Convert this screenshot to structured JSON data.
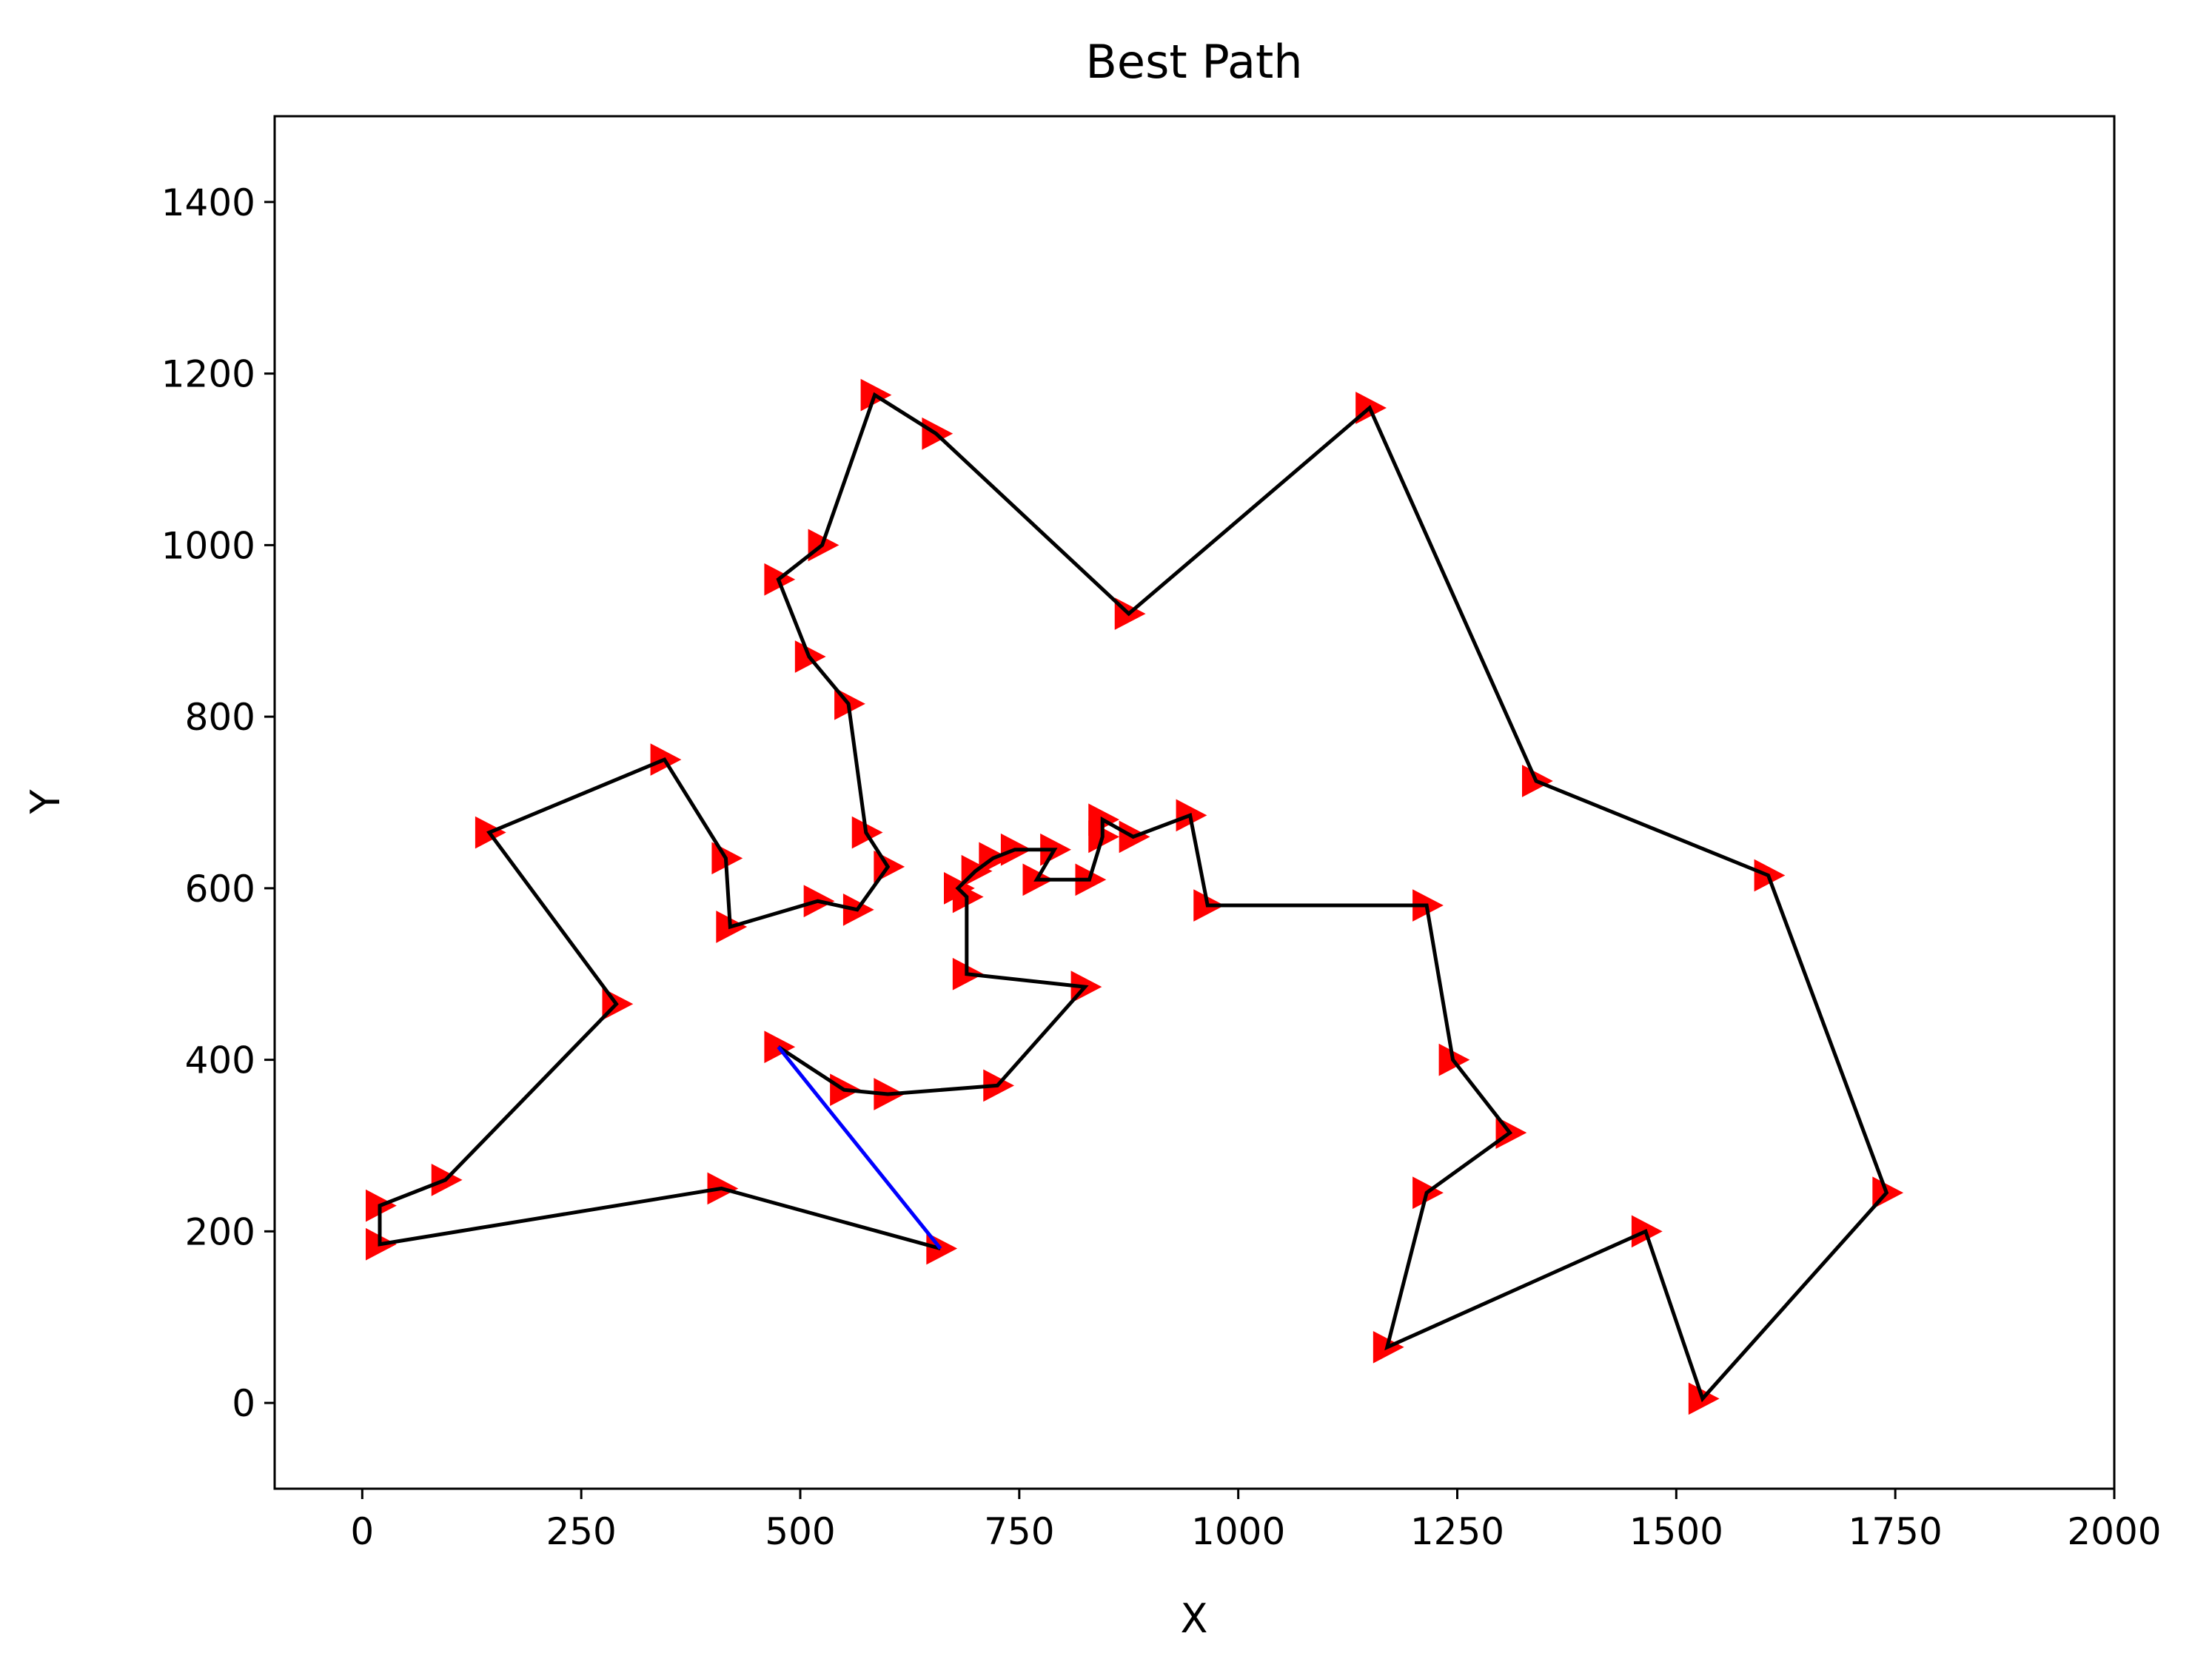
{
  "chart_data": {
    "type": "line",
    "title": "Best Path",
    "xlabel": "X",
    "ylabel": "Y",
    "xlim": [
      -100,
      2000
    ],
    "ylim": [
      -100,
      1500
    ],
    "xticks": [
      0,
      250,
      500,
      750,
      1000,
      1250,
      1500,
      1750,
      2000
    ],
    "yticks": [
      0,
      200,
      400,
      600,
      800,
      1000,
      1200,
      1400
    ],
    "xtick_labels": [
      "0",
      "250",
      "500",
      "750",
      "1000",
      "1250",
      "1500",
      "1750",
      "2000"
    ],
    "ytick_labels": [
      "0",
      "200",
      "400",
      "600",
      "800",
      "1000",
      "1200",
      "1400"
    ],
    "grid": false,
    "colors": {
      "path": "#000000",
      "closing_segment": "#0000ff",
      "marker": "#ff0000"
    },
    "marker": "triangle-right",
    "series": [
      {
        "values": [
          [
            475,
            415
          ],
          [
            550,
            365
          ],
          [
            600,
            360
          ],
          [
            725,
            370
          ],
          [
            825,
            485
          ],
          [
            690,
            500
          ],
          [
            690,
            590
          ],
          [
            680,
            600
          ],
          [
            700,
            620
          ],
          [
            720,
            635
          ],
          [
            745,
            645
          ],
          [
            790,
            645
          ],
          [
            770,
            610
          ],
          [
            830,
            610
          ],
          [
            845,
            660
          ],
          [
            845,
            680
          ],
          [
            880,
            660
          ],
          [
            945,
            685
          ],
          [
            965,
            580
          ],
          [
            1215,
            580
          ],
          [
            1245,
            400
          ],
          [
            1310,
            315
          ],
          [
            1215,
            245
          ],
          [
            1170,
            65
          ],
          [
            1465,
            200
          ],
          [
            1530,
            5
          ],
          [
            1740,
            245
          ],
          [
            1605,
            615
          ],
          [
            1340,
            725
          ],
          [
            1150,
            1160
          ],
          [
            875,
            920
          ],
          [
            655,
            1130
          ],
          [
            585,
            1175
          ],
          [
            525,
            1000
          ],
          [
            475,
            960
          ],
          [
            510,
            870
          ],
          [
            555,
            815
          ],
          [
            575,
            665
          ],
          [
            600,
            625
          ],
          [
            565,
            575
          ],
          [
            520,
            585
          ],
          [
            420,
            555
          ],
          [
            415,
            635
          ],
          [
            345,
            750
          ],
          [
            145,
            665
          ],
          [
            290,
            465
          ],
          [
            95,
            260
          ],
          [
            20,
            230
          ],
          [
            20,
            185
          ],
          [
            410,
            250
          ],
          [
            660,
            180
          ]
        ]
      }
    ],
    "closing_segment": [
      [
        660,
        180
      ],
      [
        475,
        415
      ]
    ]
  }
}
